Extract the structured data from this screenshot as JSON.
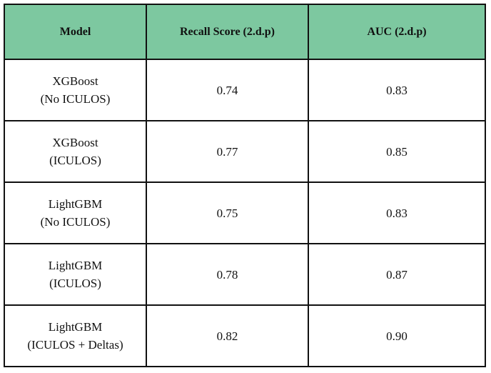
{
  "table": {
    "header": [
      "Model",
      "Recall Score (2.d.p)",
      "AUC (2.d.p)"
    ],
    "rows": [
      [
        "XGBoost\n(No ICULOS)",
        "0.74",
        "0.83"
      ],
      [
        "XGBoost\n(ICULOS)",
        "0.77",
        "0.85"
      ],
      [
        "LightGBM\n(No ICULOS)",
        "0.75",
        "0.83"
      ],
      [
        "LightGBM\n(ICULOS)",
        "0.78",
        "0.87"
      ],
      [
        "LightGBM\n(ICULOS + Deltas)",
        "0.82",
        "0.90"
      ]
    ]
  }
}
